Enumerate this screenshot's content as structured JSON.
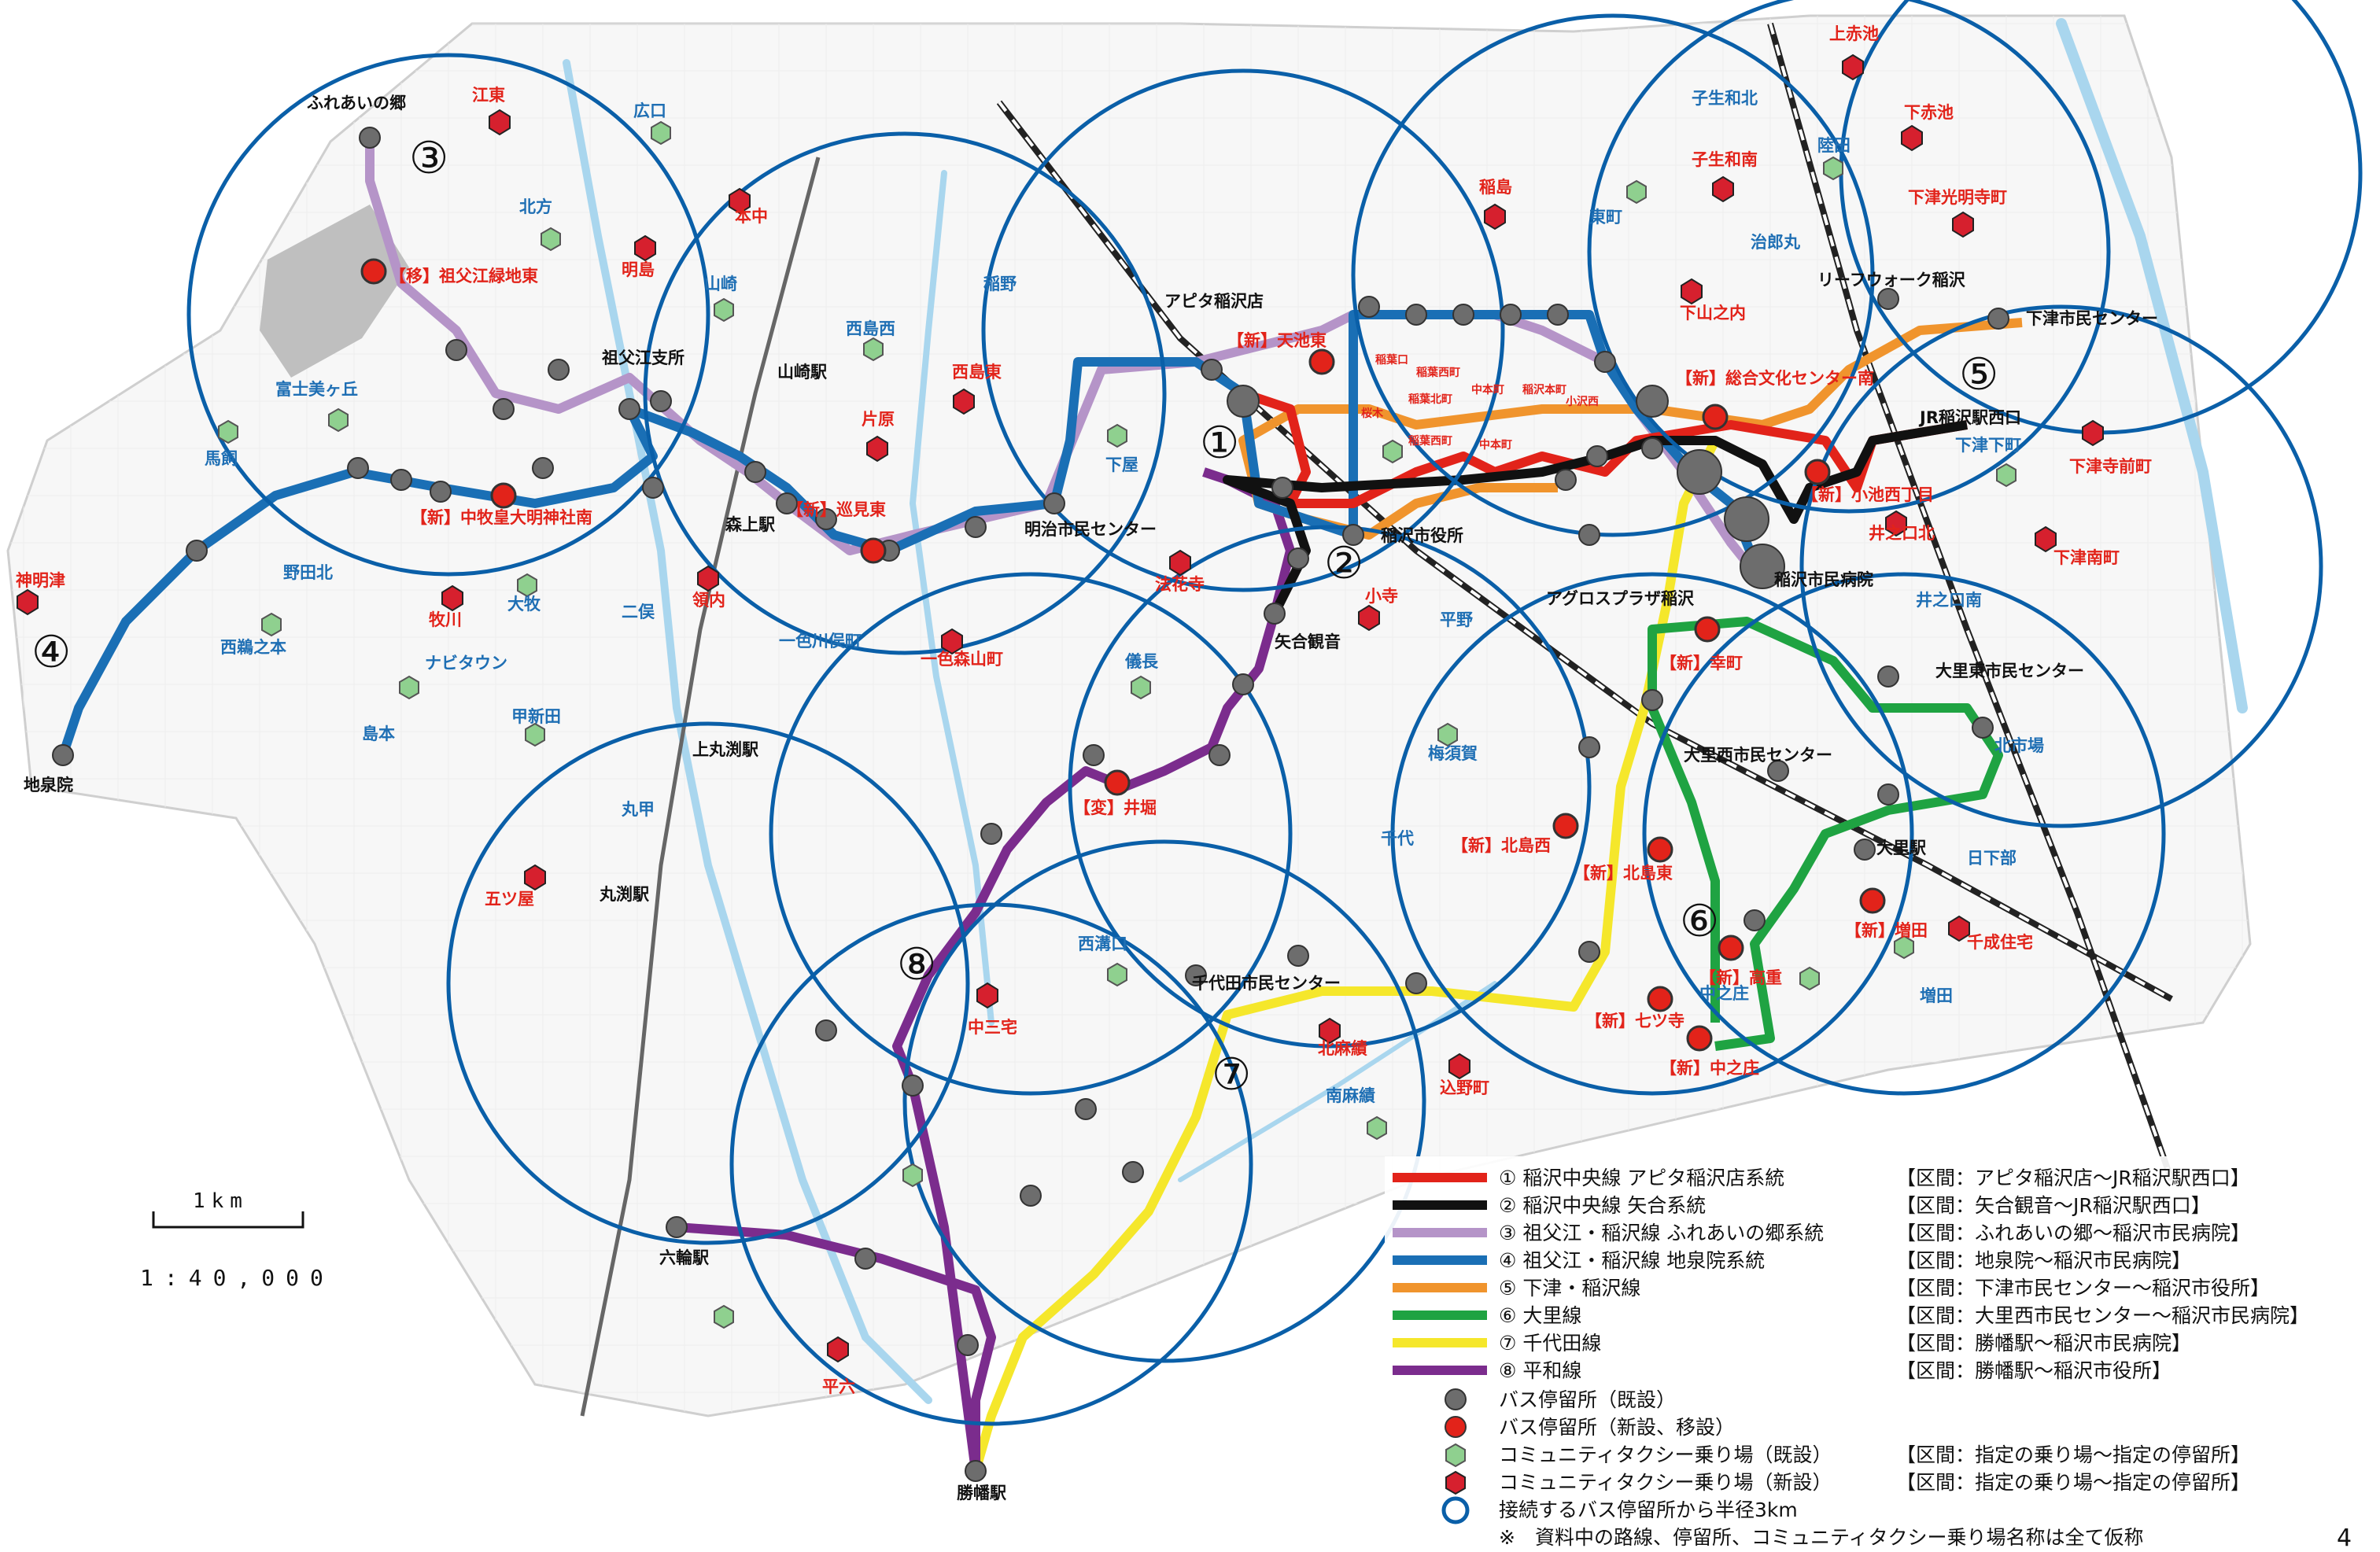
{
  "route_numbers": [
    "①",
    "②",
    "③",
    "④",
    "⑤",
    "⑥",
    "⑦",
    "⑧"
  ],
  "scale": {
    "distance": "1km",
    "ratio": "1:40,000"
  },
  "page_number": "4",
  "colors": {
    "r1": "#e2231a",
    "r2": "#111111",
    "r3": "#b594c8",
    "r4": "#1a6fb5",
    "r5": "#f0942d",
    "r6": "#1fa342",
    "r7": "#f5e72b",
    "r8": "#7b2c8d",
    "circle": "#0a5fa8",
    "stop_existing": "#6d6d6d",
    "stop_new": "#e2231a",
    "taxi_existing": "#8fd08f",
    "taxi_new": "#d6202e",
    "river": "#a9d6ee"
  },
  "stations": {
    "fureai": "ふれあいの郷",
    "sofue_shisho": "祖父江支所",
    "yamazaki": "山崎駅",
    "moriage": "森上駅",
    "apita": "アピタ稲沢店",
    "meiji": "明治市民センター",
    "city_hall": "稲沢市役所",
    "yaai": "矢合観音",
    "agros": "アグロスプラザ稲沢",
    "hospital": "稲沢市民病院",
    "jr_inazawa": "JR稲沢駅西口",
    "leafwalk": "リーフウォーク稲沢",
    "shimozu_center": "下津市民センター",
    "osato_higashi": "大里東市民センター",
    "osato_nishi": "大里西市民センター",
    "osato_eki": "大里駅",
    "kamimaruchi": "上丸渕駅",
    "maruchi": "丸渕駅",
    "chiyoda": "千代田市民センター",
    "rokuwa": "六輪駅",
    "kachiman": "勝幡駅",
    "jisenin": "地泉院"
  },
  "new_stops": {
    "sofue_ryokuchi": "【移】祖父江緑地東",
    "nakamaki": "【新】中牧皇大明神社南",
    "mimi": "【新】巡見東",
    "amaike": "【新】天池東",
    "sogo": "【新】総合文化センター南",
    "koike": "【新】小池西丁目",
    "saiwai": "【新】幸町",
    "i": "【変】井堀",
    "kitajima_nishi": "【新】北島西",
    "kitajima_higashi": "【新】北島東",
    "masuda": "【新】増田",
    "takae": "【新】高重",
    "naka_no_sho": "【新】中之庄",
    "setsu": "【新】七ツ寺"
  },
  "inner_stops": {
    "a": "稲葉口",
    "b": "稲葉西町",
    "c": "桜木",
    "d": "中本町",
    "e": "稲沢本町",
    "f": "小沢西",
    "g": "稲葉西町",
    "h": "稲葉北町",
    "i": "中本町"
  },
  "taxi_existing": {
    "hiroguchi": "広口",
    "kitagata": "北方",
    "fujimi": "富士美ヶ丘",
    "umakai": "馬飼",
    "yamazaki": "山崎",
    "nodakita": "野田北",
    "ohira": "大牧",
    "nibo": "二俣",
    "naviton": "ナビタウン",
    "nishiuonomoto": "西鵜之本",
    "shimamoto": "島本",
    "kooshinden": "甲新田",
    "marukou": "丸甲",
    "isshiki": "一色川俣町",
    "nishijima_nishi": "西島西",
    "inano": "稲野",
    "shimoya": "下屋",
    "giso": "儀長",
    "heino": "平野",
    "umesuga": "梅須賀",
    "chiyo": "千代",
    "nishimizo": "西溝口",
    "nanmaseki": "南麻績",
    "tou": "東町",
    "jiroumaru": "治郎丸",
    "mutsuwa": "陸田",
    "kogo_kita": "子生和北",
    "shimozu_shita": "下津下町",
    "inokuchi_minami": "井之口南",
    "kitaichiba": "北市場",
    "hikusabe": "日下部",
    "nakanosho": "中之庄",
    "masuda": "増田"
  },
  "taxi_new": {
    "esato": "江東",
    "honchu": "本中",
    "akeshima": "明島",
    "shinmeizu": "神明津",
    "makigawa": "牧川",
    "ryonai": "領内",
    "nishijima_higashi": "西島東",
    "katahara": "片原",
    "hokkeji": "法花寺",
    "isshiki_mori": "一色森山町",
    "inazima": "稲島",
    "kogo": "子生和南",
    "shimoyama": "下山之内",
    "kamiakaike": "上赤池",
    "shimoakaike": "下赤池",
    "shimozu_koumyou": "下津光明寺町",
    "shimozu_mae": "下津寺前町",
    "inokuchi_kita": "井之口北",
    "shimozu_ryo": "下津南町",
    "itsutsuya": "五ツ屋",
    "nakamiyake": "中三宅",
    "kitaomi": "北麻績",
    "komiyama": "込野町",
    "senzai": "千成住宅",
    "hirouku": "平六",
    "kodera": "小寺"
  },
  "legend": {
    "items": [
      {
        "label": "① 稲沢中央線 アピタ稲沢店系統",
        "section": "【区間：アピタ稲沢店～JR稲沢駅西口】"
      },
      {
        "label": "② 稲沢中央線 矢合系統",
        "section": "【区間：矢合観音～JR稲沢駅西口】"
      },
      {
        "label": "③ 祖父江・稲沢線 ふれあいの郷系統",
        "section": "【区間：ふれあいの郷～稲沢市民病院】"
      },
      {
        "label": "④ 祖父江・稲沢線 地泉院系統",
        "section": "【区間：地泉院～稲沢市民病院】"
      },
      {
        "label": "⑤ 下津・稲沢線",
        "section": "【区間：下津市民センター～稲沢市役所】"
      },
      {
        "label": "⑥ 大里線",
        "section": "【区間：大里西市民センター～稲沢市民病院】"
      },
      {
        "label": "⑦ 千代田線",
        "section": "【区間：勝幡駅～稲沢市民病院】"
      },
      {
        "label": "⑧ 平和線",
        "section": "【区間：勝幡駅～稲沢市役所】"
      }
    ],
    "symbols": [
      {
        "label": "バス停留所（既設）",
        "section": ""
      },
      {
        "label": "バス停留所（新設、移設）",
        "section": ""
      },
      {
        "label": "コミュニティタクシー乗り場（既設）",
        "section": "【区間：指定の乗り場～指定の停留所】"
      },
      {
        "label": "コミュニティタクシー乗り場（新設）",
        "section": "【区間：指定の乗り場～指定の停留所】"
      },
      {
        "label": "接続するバス停留所から半径3km",
        "section": ""
      }
    ],
    "note": "※　資料中の路線、停留所、コミュニティタクシー乗り場名称は全て仮称"
  }
}
